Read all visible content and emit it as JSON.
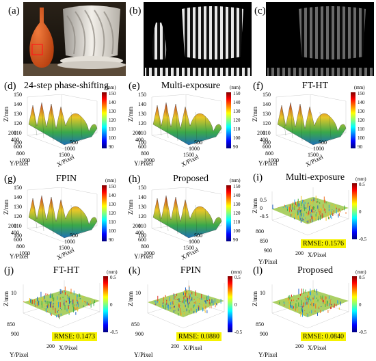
{
  "top_row": {
    "panels": [
      {
        "label": "(a)"
      },
      {
        "label": "(b)"
      },
      {
        "label": "(c)"
      }
    ]
  },
  "height_panels": [
    {
      "label": "(d)",
      "title": "24-step phase-shifting",
      "zlabel": "Z/mm",
      "ylabel": "Y/Pixel",
      "xlabel": "X/Pixel",
      "z_ticks": [
        "150",
        "140",
        "130",
        "120",
        "110",
        "100"
      ],
      "y_ticks": [
        "200",
        "400",
        "600",
        "800",
        "1000"
      ],
      "x_ticks": [
        "500",
        "1000",
        "1500"
      ],
      "colorbar_unit": "(mm)",
      "colorbar_ticks": [
        "150",
        "140",
        "130",
        "120",
        "110",
        "100",
        "90"
      ]
    },
    {
      "label": "(e)",
      "title": "Multi-exposure",
      "zlabel": "Z/mm",
      "ylabel": "Y/Pixel",
      "xlabel": "X/Pixel",
      "z_ticks": [
        "150",
        "140",
        "130",
        "120",
        "110",
        "100"
      ],
      "y_ticks": [
        "200",
        "400",
        "600",
        "800",
        "1000"
      ],
      "x_ticks": [
        "500",
        "1000",
        "1500"
      ],
      "colorbar_unit": "(mm)",
      "colorbar_ticks": [
        "150",
        "140",
        "130",
        "120",
        "110",
        "100",
        "90"
      ]
    },
    {
      "label": "(f)",
      "title": "FT-HT",
      "zlabel": "Z/mm",
      "ylabel": "Y/Pixel",
      "xlabel": "X/Pixel",
      "z_ticks": [
        "150",
        "140",
        "130",
        "120",
        "110",
        "100"
      ],
      "y_ticks": [
        "200",
        "400",
        "600",
        "800",
        "1000"
      ],
      "x_ticks": [
        "500",
        "1000",
        "1500"
      ],
      "colorbar_unit": "(mm)",
      "colorbar_ticks": [
        "150",
        "140",
        "130",
        "120",
        "110",
        "100",
        "90"
      ]
    },
    {
      "label": "(g)",
      "title": "FPIN",
      "zlabel": "Z/mm",
      "ylabel": "Y/Pixel",
      "xlabel": "X/Pixel",
      "z_ticks": [
        "150",
        "140",
        "130",
        "120",
        "110",
        "100"
      ],
      "y_ticks": [
        "200",
        "400",
        "600",
        "800",
        "1000"
      ],
      "x_ticks": [
        "500",
        "1000",
        "1500"
      ],
      "colorbar_unit": "(mm)",
      "colorbar_ticks": [
        "150",
        "140",
        "130",
        "120",
        "110",
        "100",
        "90"
      ]
    },
    {
      "label": "(h)",
      "title": "Proposed",
      "zlabel": "Z/mm",
      "ylabel": "Y/Pixel",
      "xlabel": "X/Pixel",
      "z_ticks": [
        "150",
        "140",
        "130",
        "120",
        "110",
        "100"
      ],
      "y_ticks": [
        "200",
        "400",
        "600",
        "800",
        "1000"
      ],
      "x_ticks": [
        "500",
        "1000",
        "1500"
      ],
      "colorbar_unit": "(mm)",
      "colorbar_ticks": [
        "150",
        "140",
        "130",
        "120",
        "110",
        "100",
        "90"
      ]
    }
  ],
  "error_panels": [
    {
      "label": "(i)",
      "title": "Multi-exposure",
      "zlabel": "Z/mm",
      "ylabel": "Y/Pixel",
      "xlabel": "X/Pixel",
      "z_ticks": [
        "0.5",
        "0",
        "-0.5"
      ],
      "y_ticks": [
        "800",
        "850",
        "900"
      ],
      "x_ticks": [
        "200"
      ],
      "colorbar_unit": "(mm)",
      "colorbar_ticks": [
        "0.5",
        "0",
        "-0.5"
      ],
      "rmse": "RMSE: 0.1576"
    },
    {
      "label": "(j)",
      "title": "FT-HT",
      "zlabel": "Z/mm",
      "ylabel": "Y/Pixel",
      "xlabel": "X/Pixel",
      "z_ticks": [
        "10"
      ],
      "y_ticks": [
        "850",
        "900"
      ],
      "x_ticks": [
        "200"
      ],
      "colorbar_unit": "(mm)",
      "colorbar_ticks": [
        "0.5",
        "0",
        "-0.5"
      ],
      "rmse": "RMSE: 0.1473"
    },
    {
      "label": "(k)",
      "title": "FPIN",
      "zlabel": "Z/mm",
      "ylabel": "Y/Pixel",
      "xlabel": "X/Pixel",
      "z_ticks": [
        "10"
      ],
      "y_ticks": [
        "850",
        "900"
      ],
      "x_ticks": [
        "200"
      ],
      "colorbar_unit": "(mm)",
      "colorbar_ticks": [
        "0.5",
        "0",
        "-0.5"
      ],
      "rmse": "RMSE: 0.0880"
    },
    {
      "label": "(l)",
      "title": "Proposed",
      "zlabel": "Z/mm",
      "ylabel": "Y/Pixel",
      "xlabel": "X/Pixel",
      "z_ticks": [
        "10"
      ],
      "y_ticks": [
        "850",
        "900"
      ],
      "x_ticks": [
        "200"
      ],
      "colorbar_unit": "(mm)",
      "colorbar_ticks": [
        "0.5",
        "0",
        "-0.5"
      ],
      "rmse": "RMSE: 0.0840"
    }
  ],
  "colors": {
    "vase": "#d9521e",
    "roi_box": "#ff1a1a",
    "photo_bg": "#1a1510",
    "rmse_bg": "#f6f200"
  }
}
